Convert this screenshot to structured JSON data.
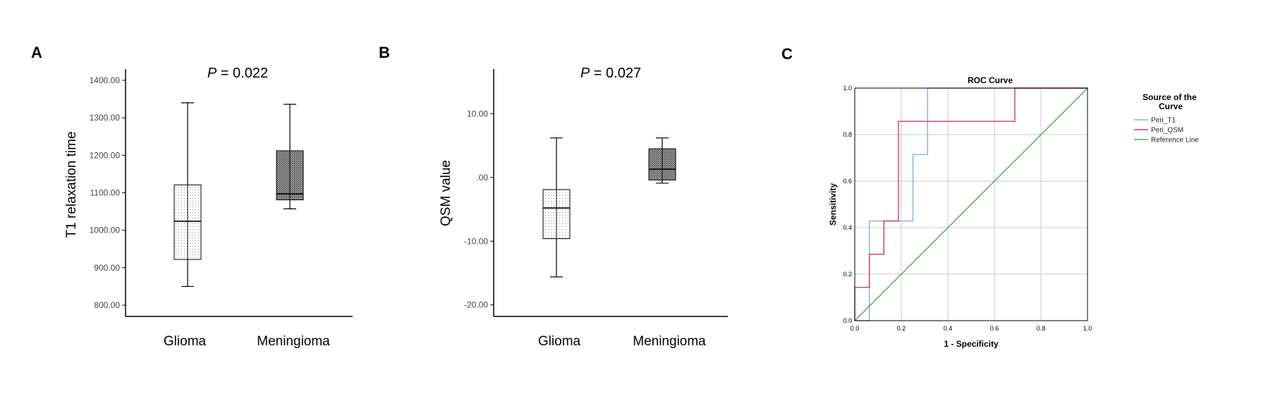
{
  "panels": {
    "a": "A",
    "b": "B",
    "c": "C"
  },
  "chart_data": [
    {
      "type": "box",
      "panel": "A",
      "ylabel": "T1 relaxation time",
      "annotation": {
        "italic": "P",
        "rest": " = 0.022"
      },
      "ylim": [
        770,
        1430
      ],
      "yticks": [
        800,
        900,
        1000,
        1100,
        1200,
        1300,
        1400
      ],
      "ytick_labels": [
        "800.00",
        "900.00",
        "1000.00",
        "1100.00",
        "1200.00",
        "1300.00",
        "1400.00"
      ],
      "categories": [
        "Glioma",
        "Meningioma"
      ],
      "boxes": [
        {
          "name": "Glioma",
          "min": 850,
          "q1": 922,
          "median": 1024,
          "q3": 1121,
          "max": 1340,
          "pattern": "light"
        },
        {
          "name": "Meningioma",
          "min": 1057,
          "q1": 1081,
          "median": 1097,
          "q3": 1212,
          "max": 1336,
          "pattern": "dark"
        }
      ]
    },
    {
      "type": "box",
      "panel": "B",
      "ylabel": "QSM value",
      "annotation": {
        "italic": "P",
        "rest": " = 0.027"
      },
      "ylim": [
        -21.8,
        17
      ],
      "yticks": [
        -20,
        -10,
        0,
        10
      ],
      "ytick_labels": [
        "-20.00",
        "-10.00",
        ".00",
        "10.00"
      ],
      "categories": [
        "Glioma",
        "Meningioma"
      ],
      "boxes": [
        {
          "name": "Glioma",
          "min": -15.6,
          "q1": -9.6,
          "median": -4.8,
          "q3": -1.9,
          "max": 6.2,
          "pattern": "light"
        },
        {
          "name": "Meningioma",
          "min": -0.9,
          "q1": -0.4,
          "median": 1.3,
          "q3": 4.5,
          "max": 6.2,
          "pattern": "dark"
        }
      ]
    },
    {
      "type": "line",
      "panel": "C",
      "title": "ROC Curve",
      "xlabel": "1 - Specificity",
      "ylabel": "Sensitivity",
      "xlim": [
        0,
        1
      ],
      "ylim": [
        0,
        1
      ],
      "ticks": [
        0,
        0.2,
        0.4,
        0.6,
        0.8,
        1.0
      ],
      "tick_labels": [
        "0.0",
        "0.2",
        "0.4",
        "0.6",
        "0.8",
        "1.0"
      ],
      "grid": true,
      "legend": {
        "title": "Source of the Curve",
        "placement": "right"
      },
      "series": [
        {
          "name": "Peri_T1",
          "color": "#7fb0dc",
          "x": [
            0,
            0.0625,
            0.0625,
            0.25,
            0.25,
            0.3125,
            0.3125,
            1.0
          ],
          "y": [
            0,
            0,
            0.4286,
            0.4286,
            0.7143,
            0.7143,
            1.0,
            1.0
          ]
        },
        {
          "name": "Peri_QSM",
          "color": "#d6336c",
          "x": [
            0,
            0,
            0.0625,
            0.0625,
            0.125,
            0.125,
            0.1875,
            0.1875,
            0.6875,
            0.6875,
            1.0
          ],
          "y": [
            0,
            0.1429,
            0.1429,
            0.2857,
            0.2857,
            0.4286,
            0.4286,
            0.8571,
            0.8571,
            1.0,
            1.0
          ]
        },
        {
          "name": "Reference Line",
          "color": "#5aa05a",
          "x": [
            0,
            1
          ],
          "y": [
            0,
            1
          ]
        }
      ]
    }
  ]
}
